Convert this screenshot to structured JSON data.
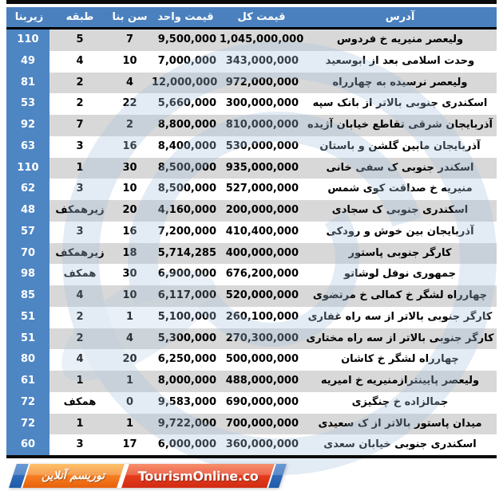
{
  "chart_data": {
    "type": "table",
    "title": "",
    "columns": [
      "آدرس",
      "قیمت کل",
      "قیمت واحد",
      "سن بنا",
      "طبقه",
      "زیربنا"
    ],
    "column_keys": [
      "address",
      "total",
      "unit",
      "age",
      "floor",
      "area"
    ],
    "rows": [
      [
        "ولیعصر منیریه خ فردوس",
        "1,045,000,000",
        "9,500,000",
        "7",
        "5",
        "110"
      ],
      [
        "وحدت اسلامی بعد از ابوسعید",
        "343,000,000",
        "7,000,000",
        "10",
        "4",
        "49"
      ],
      [
        "ولیعصر نرسیده به چهارراه",
        "972,000,000",
        "12,000,000",
        "4",
        "2",
        "81"
      ],
      [
        "اسکندری جنوبی بالاتر از بانک سپه",
        "300,000,000",
        "5,660,000",
        "22",
        "2",
        "53"
      ],
      [
        "آذربایجان شرقی تقاطع خیابان آژیده",
        "810,000,000",
        "8,800,000",
        "2",
        "7",
        "92"
      ],
      [
        "آذربایجان مابین گلشن و باستان",
        "530,000,000",
        "8,400,000",
        "16",
        "3",
        "63"
      ],
      [
        "اسکندر جنوبی ک سفی خانی",
        "935,000,000",
        "8,500,000",
        "30",
        "1",
        "110"
      ],
      [
        "منیریه خ صداقت کوی شمس",
        "527,000,000",
        "8,500,000",
        "10",
        "3",
        "62"
      ],
      [
        "اسکندری جنوبی ک سجادی",
        "200,000,000",
        "4,160,000",
        "20",
        "زیرهمکف",
        "48"
      ],
      [
        "آذربایجان بین خوش و رودکی",
        "410,400,000",
        "7,200,000",
        "16",
        "3",
        "57"
      ],
      [
        "کارگر جنوبی پاستور",
        "400,000,000",
        "5,714,285",
        "18",
        "زیرهمکف",
        "70"
      ],
      [
        "جمهوری نوفل لوشاتو",
        "676,200,000",
        "6,900,000",
        "30",
        "همکف",
        "98"
      ],
      [
        "چهارراه لشگر خ کمالی خ مرتضوی",
        "520,000,000",
        "6,117,000",
        "10",
        "4",
        "85"
      ],
      [
        "کارگر جنوبی بالاتر از سه راه غفاری",
        "260,100,000",
        "5,100,000",
        "1",
        "2",
        "51"
      ],
      [
        "کارگر جنوبی بالاتر از سه راه مختاری",
        "270,300,000",
        "5,300,000",
        "4",
        "2",
        "51"
      ],
      [
        "چهارراه لشگر خ کاشان",
        "500,000,000",
        "6,250,000",
        "20",
        "4",
        "80"
      ],
      [
        "ولیعصر پایینترازمنیریه خ امیریه",
        "488,000,000",
        "8,000,000",
        "1",
        "1",
        "61"
      ],
      [
        "جمالزاده خ چنگیزی",
        "690,000,000",
        "9,583,000",
        "0",
        "همکف",
        "72"
      ],
      [
        "میدان پاستور بالاتر از ک سعیدی",
        "700,000,000",
        "9,722,000",
        "1",
        "1",
        "72"
      ],
      [
        "اسکندری جنوبی خیابان سعدی",
        "360,000,000",
        "6,000,000",
        "17",
        "3",
        "60"
      ]
    ],
    "layout_hints": {
      "direction": "rtl",
      "banded_rows": true,
      "first_column_highlight": true
    }
  },
  "footer": {
    "brand_fa": "توریسم آنلاین",
    "brand_en": "TourismOnline.co"
  },
  "colors": {
    "header_blue": "#4a80be",
    "area_column_blue": "#4e86c4",
    "band_gray": "#d1d1d1",
    "watermark_blue": "#a9c3de",
    "logo_orange": "#f47b20",
    "logo_red": "#e93e1e",
    "logo_blue": "#1e5aa8",
    "bar_black": "#0a0a0a"
  }
}
